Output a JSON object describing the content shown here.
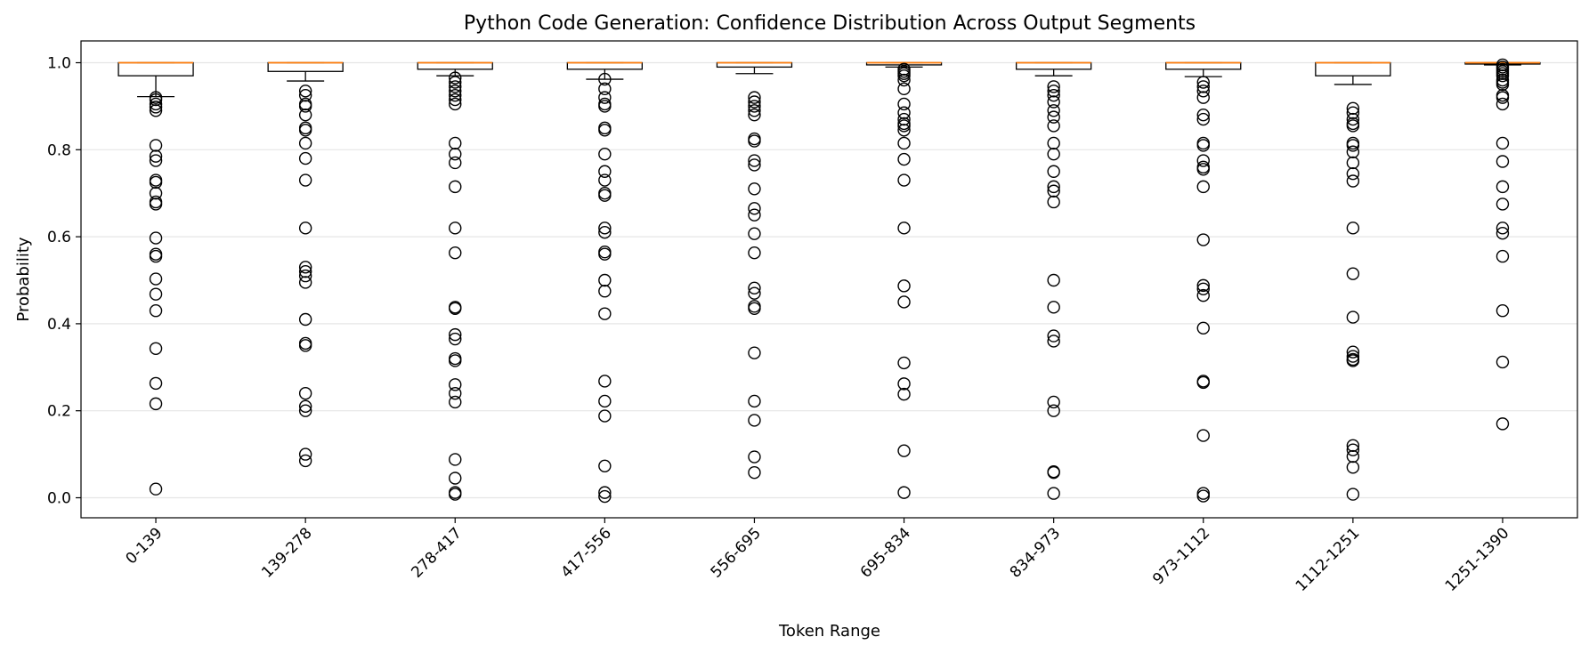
{
  "chart_data": {
    "type": "box",
    "title": "Python Code Generation: Confidence Distribution Across Output Segments",
    "xlabel": "Token Range",
    "ylabel": "Probability",
    "ylim": [
      -0.045,
      1.05
    ],
    "yticks": [
      0.0,
      0.2,
      0.4,
      0.6,
      0.8,
      1.0
    ],
    "ytick_labels": [
      "0.0",
      "0.2",
      "0.4",
      "0.6",
      "0.8",
      "1.0"
    ],
    "grid": "horizontal",
    "categories": [
      "0-139",
      "139-278",
      "278-417",
      "417-556",
      "556-695",
      "695-834",
      "834-973",
      "973-1112",
      "1112-1251",
      "1251-1390"
    ],
    "boxes": [
      {
        "q1": 0.97,
        "median": 1.0,
        "q3": 1.0,
        "whisker_low": 0.922,
        "whisker_high": 1.0,
        "outliers": [
          0.92,
          0.915,
          0.905,
          0.898,
          0.89,
          0.81,
          0.785,
          0.775,
          0.73,
          0.725,
          0.7,
          0.68,
          0.675,
          0.597,
          0.56,
          0.555,
          0.503,
          0.468,
          0.43,
          0.343,
          0.263,
          0.216,
          0.02
        ]
      },
      {
        "q1": 0.98,
        "median": 1.0,
        "q3": 1.0,
        "whisker_low": 0.958,
        "whisker_high": 1.0,
        "outliers": [
          0.935,
          0.925,
          0.905,
          0.9,
          0.88,
          0.85,
          0.845,
          0.815,
          0.78,
          0.73,
          0.62,
          0.53,
          0.52,
          0.51,
          0.495,
          0.41,
          0.355,
          0.35,
          0.24,
          0.21,
          0.2,
          0.1,
          0.085
        ]
      },
      {
        "q1": 0.985,
        "median": 1.0,
        "q3": 1.0,
        "whisker_low": 0.97,
        "whisker_high": 1.0,
        "outliers": [
          0.965,
          0.955,
          0.945,
          0.935,
          0.925,
          0.915,
          0.905,
          0.815,
          0.79,
          0.77,
          0.715,
          0.62,
          0.563,
          0.438,
          0.435,
          0.375,
          0.365,
          0.32,
          0.315,
          0.26,
          0.24,
          0.22,
          0.088,
          0.045,
          0.012,
          0.008
        ]
      },
      {
        "q1": 0.985,
        "median": 1.0,
        "q3": 1.0,
        "whisker_low": 0.962,
        "whisker_high": 1.0,
        "outliers": [
          0.962,
          0.94,
          0.92,
          0.905,
          0.9,
          0.85,
          0.845,
          0.79,
          0.75,
          0.73,
          0.7,
          0.695,
          0.62,
          0.61,
          0.565,
          0.56,
          0.5,
          0.475,
          0.423,
          0.268,
          0.222,
          0.188,
          0.073,
          0.012,
          0.003
        ]
      },
      {
        "q1": 0.99,
        "median": 1.0,
        "q3": 1.0,
        "whisker_low": 0.975,
        "whisker_high": 1.0,
        "outliers": [
          0.92,
          0.91,
          0.9,
          0.89,
          0.88,
          0.825,
          0.82,
          0.775,
          0.765,
          0.71,
          0.665,
          0.65,
          0.607,
          0.563,
          0.482,
          0.47,
          0.44,
          0.435,
          0.333,
          0.222,
          0.178,
          0.094,
          0.058
        ]
      },
      {
        "q1": 0.995,
        "median": 1.0,
        "q3": 1.0,
        "whisker_low": 0.99,
        "whisker_high": 1.0,
        "outliers": [
          0.985,
          0.98,
          0.975,
          0.97,
          0.96,
          0.94,
          0.905,
          0.885,
          0.87,
          0.86,
          0.855,
          0.845,
          0.815,
          0.778,
          0.73,
          0.62,
          0.487,
          0.45,
          0.31,
          0.262,
          0.238,
          0.108,
          0.012
        ]
      },
      {
        "q1": 0.985,
        "median": 1.0,
        "q3": 1.0,
        "whisker_low": 0.97,
        "whisker_high": 1.0,
        "outliers": [
          0.945,
          0.935,
          0.925,
          0.91,
          0.89,
          0.875,
          0.855,
          0.815,
          0.79,
          0.75,
          0.715,
          0.705,
          0.68,
          0.5,
          0.438,
          0.372,
          0.36,
          0.22,
          0.2,
          0.06,
          0.058,
          0.01
        ]
      },
      {
        "q1": 0.985,
        "median": 1.0,
        "q3": 1.0,
        "whisker_low": 0.968,
        "whisker_high": 1.0,
        "outliers": [
          0.955,
          0.945,
          0.935,
          0.92,
          0.88,
          0.87,
          0.815,
          0.81,
          0.775,
          0.76,
          0.755,
          0.715,
          0.593,
          0.488,
          0.48,
          0.465,
          0.39,
          0.268,
          0.265,
          0.143,
          0.01,
          0.004
        ]
      },
      {
        "q1": 0.97,
        "median": 1.0,
        "q3": 1.0,
        "whisker_low": 0.95,
        "whisker_high": 1.0,
        "outliers": [
          0.895,
          0.885,
          0.87,
          0.86,
          0.855,
          0.815,
          0.81,
          0.795,
          0.77,
          0.745,
          0.728,
          0.62,
          0.515,
          0.415,
          0.335,
          0.325,
          0.318,
          0.315,
          0.12,
          0.11,
          0.095,
          0.07,
          0.008
        ]
      },
      {
        "q1": 0.997,
        "median": 1.0,
        "q3": 1.0,
        "whisker_low": 0.995,
        "whisker_high": 1.0,
        "outliers": [
          0.995,
          0.99,
          0.985,
          0.98,
          0.975,
          0.97,
          0.96,
          0.955,
          0.95,
          0.925,
          0.92,
          0.905,
          0.815,
          0.773,
          0.715,
          0.675,
          0.62,
          0.608,
          0.555,
          0.43,
          0.312,
          0.17
        ]
      }
    ],
    "colors": {
      "median": "#ff7f0e",
      "box": "#000000",
      "grid": "#e6e6e6"
    }
  }
}
